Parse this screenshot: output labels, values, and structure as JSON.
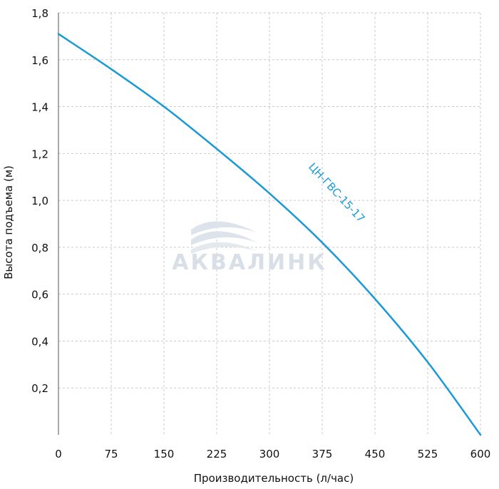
{
  "chart_data": {
    "type": "line",
    "title": "",
    "xlabel": "Производительность (л/час)",
    "ylabel": "Высота подъема (м)",
    "xlim": [
      0,
      600
    ],
    "ylim": [
      0,
      1.8
    ],
    "x_ticks": [
      0,
      75,
      150,
      225,
      300,
      375,
      450,
      525,
      600
    ],
    "x_tick_labels": [
      "0",
      "75",
      "150",
      "225",
      "300",
      "375",
      "450",
      "525",
      "600"
    ],
    "y_ticks": [
      0.2,
      0.4,
      0.6,
      0.8,
      1.0,
      1.2,
      1.4,
      1.6,
      1.8
    ],
    "y_tick_labels": [
      "0,2",
      "0,4",
      "0,6",
      "0,8",
      "1,0",
      "1,2",
      "1,4",
      "1,6",
      "1,8"
    ],
    "grid": true,
    "series": [
      {
        "name": "ЦН-ГВС-15-17",
        "color": "#1a9ad6",
        "x": [
          0,
          75,
          150,
          225,
          300,
          375,
          450,
          525,
          600
        ],
        "y": [
          1.71,
          1.56,
          1.4,
          1.22,
          1.03,
          0.82,
          0.58,
          0.31,
          0.0
        ]
      }
    ]
  },
  "watermark": {
    "text": "АКВАЛИНК",
    "color": "#d9dfe6",
    "icon": "wave-logo-icon"
  }
}
